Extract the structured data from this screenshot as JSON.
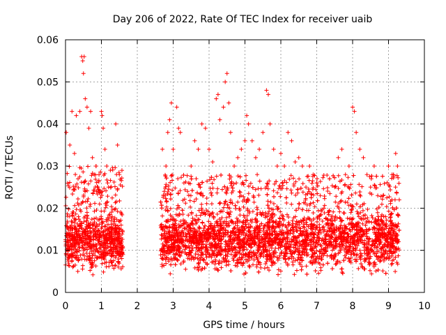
{
  "chart_data": {
    "type": "scatter",
    "title": "Day 206 of 2022, Rate Of TEC Index for receiver uaib",
    "xlabel": "GPS time / hours",
    "ylabel": "ROTI / TECUs",
    "xlim": [
      0,
      10
    ],
    "ylim": [
      0,
      0.06
    ],
    "x_ticks": [
      "0",
      "1",
      "2",
      "3",
      "4",
      "5",
      "6",
      "7",
      "8",
      "9",
      "10"
    ],
    "y_ticks": [
      "0",
      "0.01",
      "0.02",
      "0.03",
      "0.04",
      "0.05",
      "0.06"
    ],
    "grid": true,
    "marker": "+",
    "series_color": "#ff0000",
    "segments": [
      {
        "x_start": 0.0,
        "x_end": 1.6,
        "y_base": 0.012,
        "y_spread": 0.018
      },
      {
        "x_start": 2.65,
        "x_end": 9.3,
        "y_base": 0.012,
        "y_spread": 0.016
      }
    ],
    "points": [
      [
        0.02,
        0.038
      ],
      [
        0.05,
        0.013
      ],
      [
        0.12,
        0.035
      ],
      [
        0.18,
        0.043
      ],
      [
        0.25,
        0.033
      ],
      [
        0.3,
        0.042
      ],
      [
        0.35,
        0.027
      ],
      [
        0.4,
        0.043
      ],
      [
        0.45,
        0.056
      ],
      [
        0.48,
        0.055
      ],
      [
        0.5,
        0.052
      ],
      [
        0.52,
        0.056
      ],
      [
        0.55,
        0.046
      ],
      [
        0.6,
        0.044
      ],
      [
        0.65,
        0.039
      ],
      [
        0.7,
        0.043
      ],
      [
        0.75,
        0.032
      ],
      [
        0.8,
        0.028
      ],
      [
        0.85,
        0.03
      ],
      [
        0.9,
        0.025
      ],
      [
        0.95,
        0.021
      ],
      [
        1.0,
        0.043
      ],
      [
        1.02,
        0.042
      ],
      [
        1.05,
        0.039
      ],
      [
        1.1,
        0.034
      ],
      [
        1.15,
        0.03
      ],
      [
        1.2,
        0.025
      ],
      [
        1.25,
        0.029
      ],
      [
        1.3,
        0.018
      ],
      [
        1.4,
        0.04
      ],
      [
        1.45,
        0.035
      ],
      [
        1.5,
        0.028
      ],
      [
        1.55,
        0.016
      ],
      [
        1.6,
        0.009
      ],
      [
        2.7,
        0.034
      ],
      [
        2.75,
        0.024
      ],
      [
        2.8,
        0.03
      ],
      [
        2.85,
        0.038
      ],
      [
        2.9,
        0.041
      ],
      [
        2.95,
        0.045
      ],
      [
        3.0,
        0.034
      ],
      [
        3.1,
        0.044
      ],
      [
        3.15,
        0.039
      ],
      [
        3.2,
        0.038
      ],
      [
        3.3,
        0.026
      ],
      [
        3.4,
        0.024
      ],
      [
        3.5,
        0.03
      ],
      [
        3.6,
        0.036
      ],
      [
        3.7,
        0.034
      ],
      [
        3.8,
        0.04
      ],
      [
        3.9,
        0.039
      ],
      [
        4.0,
        0.034
      ],
      [
        4.1,
        0.031
      ],
      [
        4.2,
        0.046
      ],
      [
        4.25,
        0.047
      ],
      [
        4.3,
        0.041
      ],
      [
        4.4,
        0.044
      ],
      [
        4.45,
        0.05
      ],
      [
        4.5,
        0.052
      ],
      [
        4.55,
        0.045
      ],
      [
        4.6,
        0.038
      ],
      [
        4.7,
        0.03
      ],
      [
        4.8,
        0.032
      ],
      [
        4.9,
        0.034
      ],
      [
        5.0,
        0.036
      ],
      [
        5.05,
        0.042
      ],
      [
        5.1,
        0.04
      ],
      [
        5.2,
        0.036
      ],
      [
        5.3,
        0.032
      ],
      [
        5.4,
        0.034
      ],
      [
        5.5,
        0.038
      ],
      [
        5.6,
        0.048
      ],
      [
        5.65,
        0.047
      ],
      [
        5.7,
        0.04
      ],
      [
        5.8,
        0.034
      ],
      [
        5.9,
        0.03
      ],
      [
        6.0,
        0.033
      ],
      [
        6.1,
        0.03
      ],
      [
        6.2,
        0.038
      ],
      [
        6.3,
        0.036
      ],
      [
        6.4,
        0.031
      ],
      [
        6.5,
        0.032
      ],
      [
        6.6,
        0.03
      ],
      [
        6.7,
        0.025
      ],
      [
        6.8,
        0.03
      ],
      [
        6.9,
        0.028
      ],
      [
        7.0,
        0.026
      ],
      [
        7.1,
        0.023
      ],
      [
        7.2,
        0.02
      ],
      [
        7.3,
        0.016
      ],
      [
        7.4,
        0.012
      ],
      [
        7.5,
        0.025
      ],
      [
        7.6,
        0.032
      ],
      [
        7.7,
        0.034
      ],
      [
        7.8,
        0.028
      ],
      [
        7.9,
        0.03
      ],
      [
        8.0,
        0.044
      ],
      [
        8.05,
        0.043
      ],
      [
        8.1,
        0.038
      ],
      [
        8.2,
        0.034
      ],
      [
        8.3,
        0.032
      ],
      [
        8.4,
        0.028
      ],
      [
        8.5,
        0.025
      ],
      [
        8.6,
        0.03
      ],
      [
        8.7,
        0.023
      ],
      [
        8.8,
        0.018
      ],
      [
        8.9,
        0.016
      ],
      [
        9.0,
        0.03
      ],
      [
        9.1,
        0.028
      ],
      [
        9.2,
        0.033
      ],
      [
        9.25,
        0.03
      ],
      [
        9.3,
        0.022
      ]
    ]
  }
}
